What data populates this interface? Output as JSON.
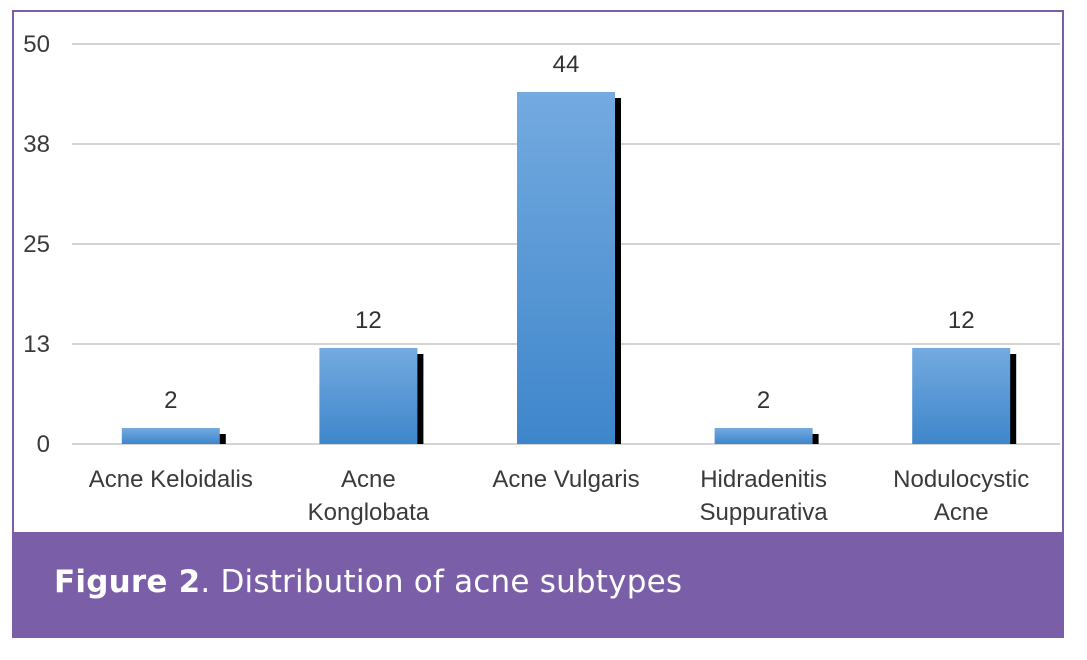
{
  "chart_data": {
    "type": "bar",
    "categories": [
      "Acne Keloidalis",
      "Acne\nKonglobata",
      "Acne Vulgaris",
      "Hidradenitis\nSuppurativa",
      "Nodulocystic\nAcne"
    ],
    "values": [
      2,
      12,
      44,
      2,
      12
    ],
    "data_labels": [
      "2",
      "12",
      "44",
      "2",
      "12"
    ],
    "y_ticks": [
      "0",
      "13",
      "25",
      "38",
      "50"
    ],
    "y_tick_values": [
      0,
      12.5,
      25,
      37.5,
      50
    ],
    "ylim": [
      0,
      50
    ],
    "grid": true,
    "legend": "none",
    "colors": {
      "bar_top": "#74aae0",
      "bar_bottom": "#3e86cb",
      "bar_shadow": "#000000",
      "grid": "#d4d4d4"
    }
  },
  "caption": {
    "label": "Figure 2",
    "separator": ".",
    "title": " Distribution of acne subtypes"
  },
  "colors": {
    "frame": "#7a5fa8",
    "band": "#7a5fa8"
  }
}
